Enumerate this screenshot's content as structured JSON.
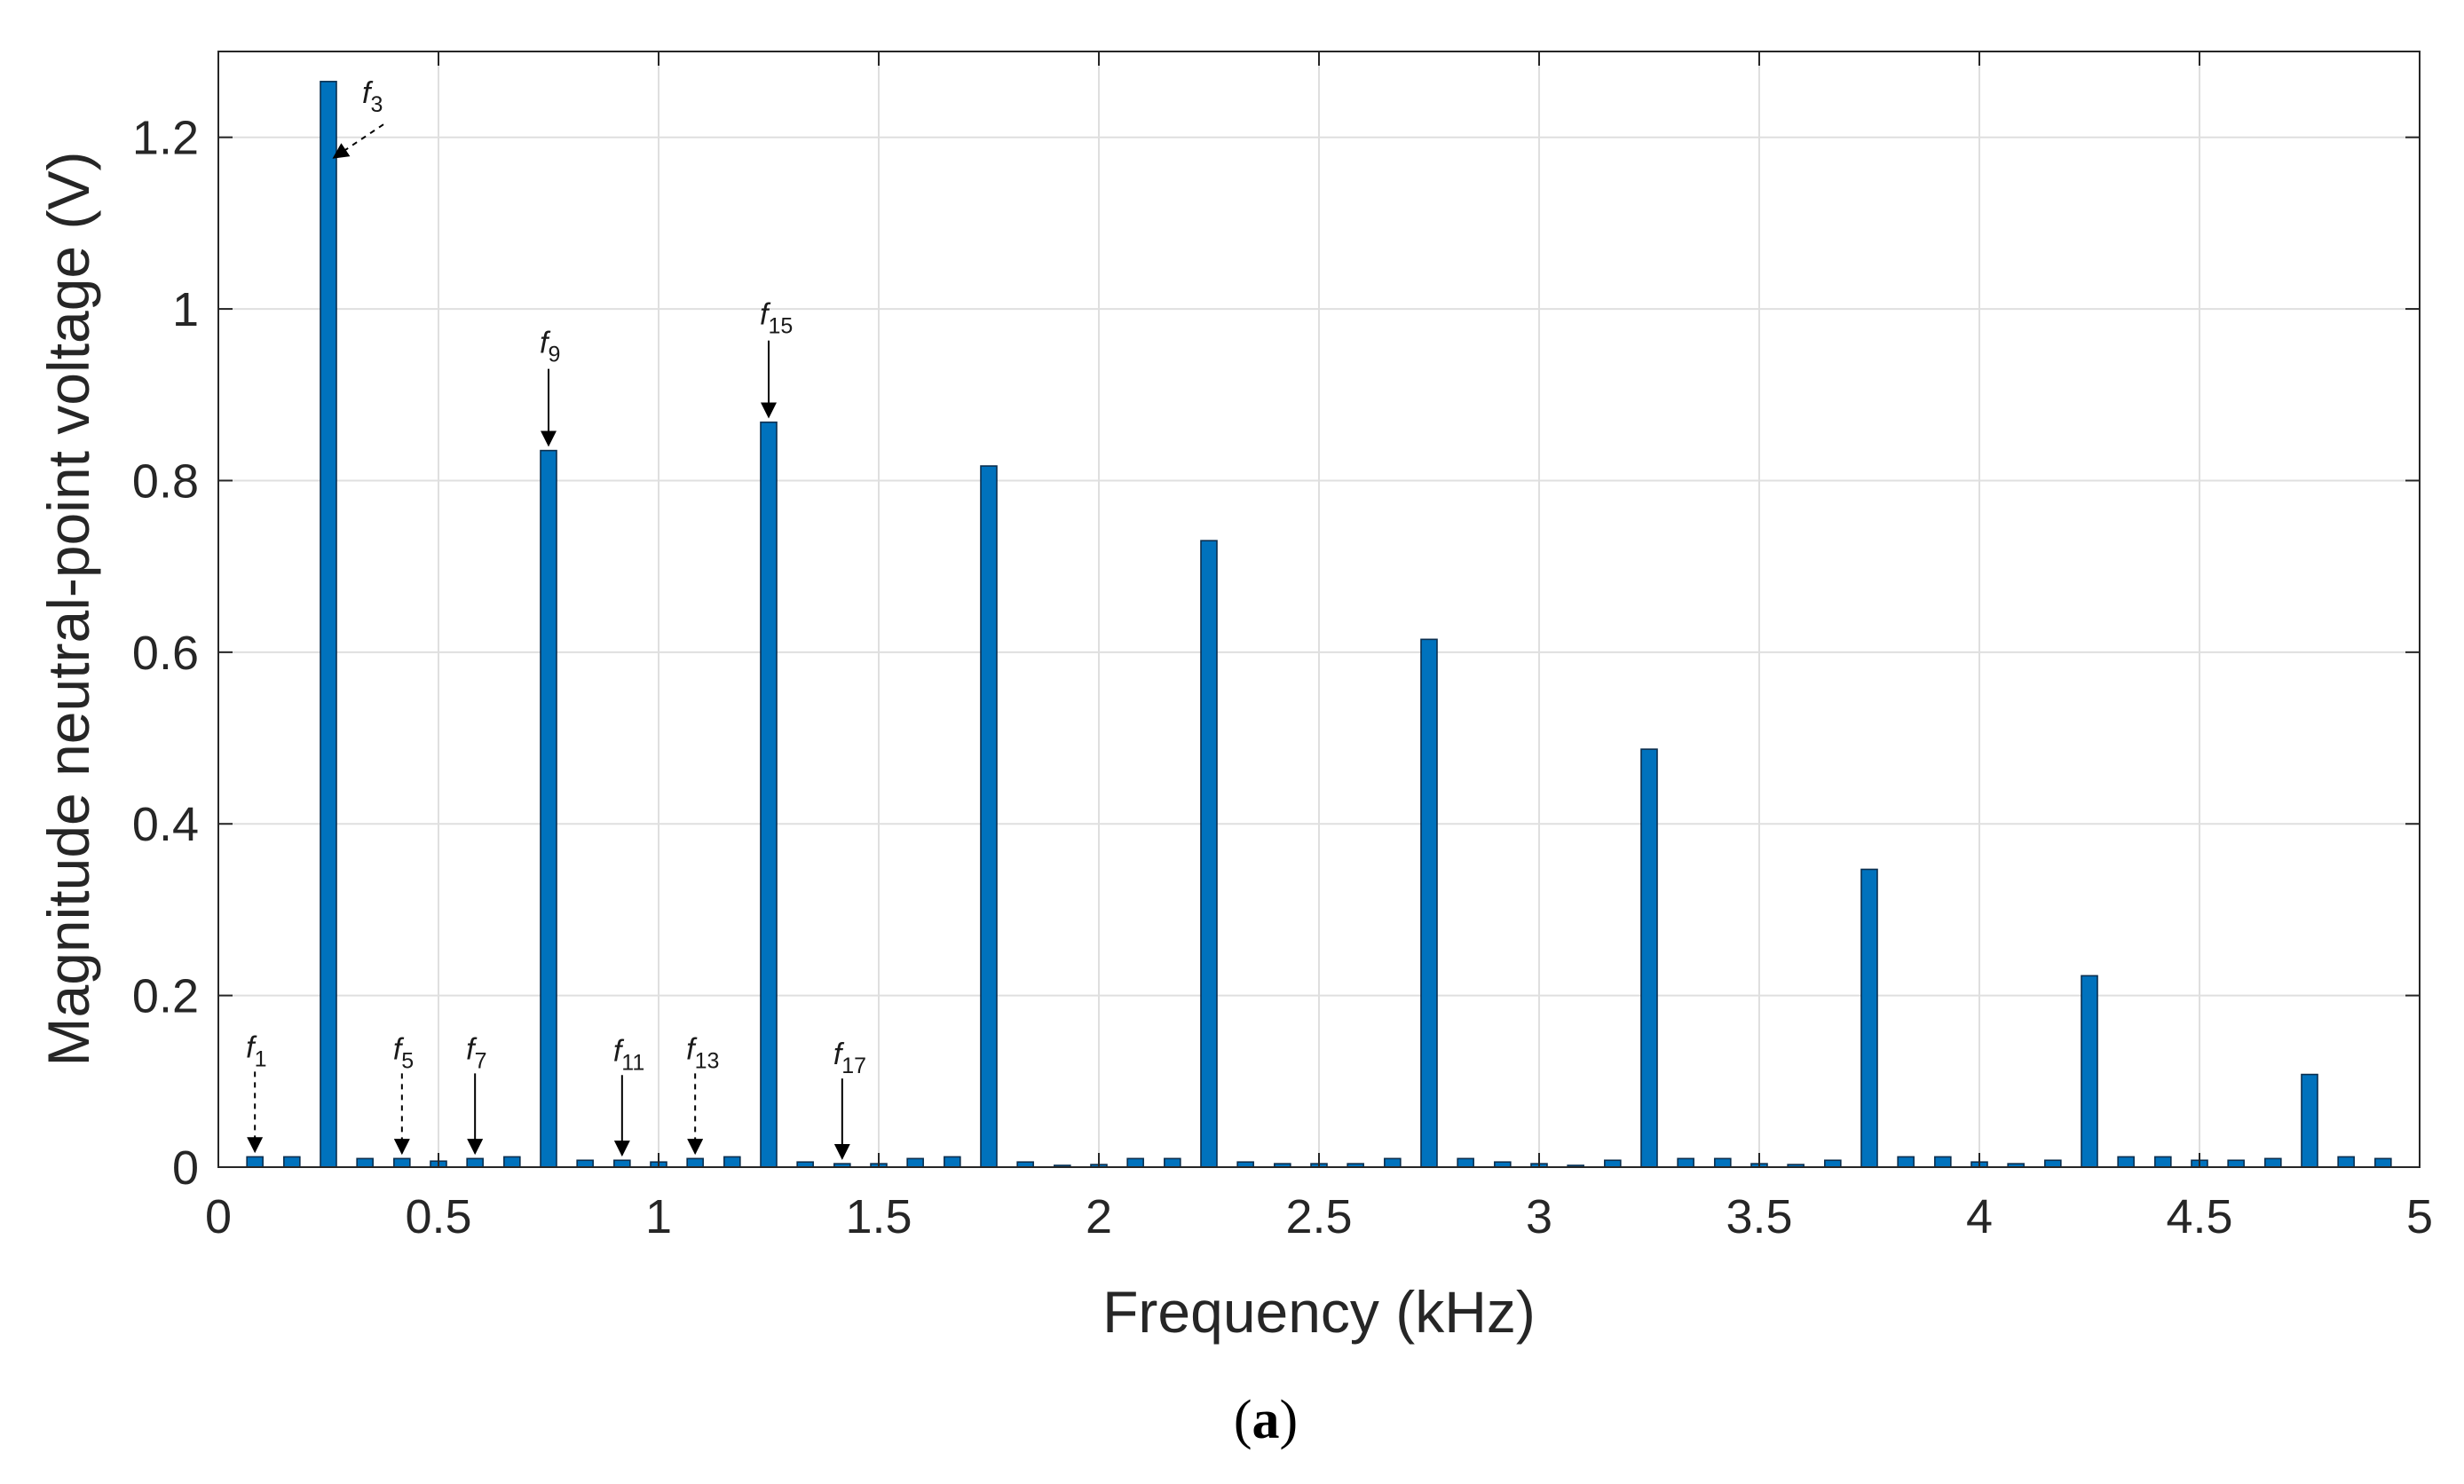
{
  "chart_data": {
    "type": "bar",
    "xlabel": "Frequency  (kHz)",
    "ylabel": "Magnitude neutral-point voltage (V)",
    "xlim": [
      0,
      5
    ],
    "ylim": [
      0,
      1.3
    ],
    "xticks": [
      0,
      0.5,
      1,
      1.5,
      2,
      2.5,
      3,
      3.5,
      4,
      4.5,
      5
    ],
    "yticks": [
      0,
      0.2,
      0.4,
      0.6,
      0.8,
      1,
      1.2
    ],
    "xtick_labels": [
      "0",
      "0.5",
      "1",
      "1.5",
      "2",
      "2.5",
      "3",
      "3.5",
      "4",
      "4.5",
      "5"
    ],
    "ytick_labels": [
      "0",
      "0.2",
      "0.4",
      "0.6",
      "0.8",
      "1",
      "1.2"
    ],
    "grid": true,
    "bar_color": "#0072bd",
    "x": [
      0.083,
      0.167,
      0.25,
      0.333,
      0.417,
      0.5,
      0.583,
      0.667,
      0.75,
      0.833,
      0.917,
      1.0,
      1.083,
      1.167,
      1.25,
      1.333,
      1.417,
      1.5,
      1.583,
      1.667,
      1.75,
      1.833,
      1.917,
      2.0,
      2.083,
      2.167,
      2.25,
      2.333,
      2.417,
      2.5,
      2.583,
      2.667,
      2.75,
      2.833,
      2.917,
      3.0,
      3.083,
      3.167,
      3.25,
      3.333,
      3.417,
      3.5,
      3.583,
      3.667,
      3.75,
      3.833,
      3.917,
      4.0,
      4.083,
      4.167,
      4.25,
      4.333,
      4.417,
      4.5,
      4.583,
      4.667,
      4.75,
      4.833,
      4.917
    ],
    "values": [
      0.012,
      0.012,
      1.265,
      0.01,
      0.01,
      0.007,
      0.01,
      0.012,
      0.835,
      0.008,
      0.008,
      0.006,
      0.01,
      0.012,
      0.868,
      0.006,
      0.004,
      0.004,
      0.01,
      0.012,
      0.817,
      0.006,
      0.002,
      0.003,
      0.01,
      0.01,
      0.73,
      0.006,
      0.004,
      0.004,
      0.004,
      0.01,
      0.615,
      0.01,
      0.006,
      0.004,
      0.002,
      0.008,
      0.487,
      0.01,
      0.01,
      0.004,
      0.003,
      0.008,
      0.347,
      0.012,
      0.012,
      0.006,
      0.004,
      0.008,
      0.223,
      0.012,
      0.012,
      0.008,
      0.008,
      0.01,
      0.108,
      0.012,
      0.01
    ],
    "annotations": [
      {
        "label": "f",
        "sub": "1",
        "x": 0.083,
        "y": 0.012,
        "arrow": "dashed"
      },
      {
        "label": "f",
        "sub": "3",
        "x": 0.25,
        "y": 1.17,
        "arrow": "dashed"
      },
      {
        "label": "f",
        "sub": "5",
        "x": 0.417,
        "y": 0.01,
        "arrow": "dashed"
      },
      {
        "label": "f",
        "sub": "7",
        "x": 0.583,
        "y": 0.01,
        "arrow": "solid"
      },
      {
        "label": "f",
        "sub": "9",
        "x": 0.75,
        "y": 0.835,
        "arrow": "solid"
      },
      {
        "label": "f",
        "sub": "11",
        "x": 0.917,
        "y": 0.008,
        "arrow": "solid"
      },
      {
        "label": "f",
        "sub": "13",
        "x": 1.083,
        "y": 0.01,
        "arrow": "dashed"
      },
      {
        "label": "f",
        "sub": "15",
        "x": 1.25,
        "y": 0.868,
        "arrow": "solid"
      },
      {
        "label": "f",
        "sub": "17",
        "x": 1.417,
        "y": 0.004,
        "arrow": "solid"
      }
    ]
  },
  "caption": {
    "open": "(",
    "letter": "a",
    "close": ")"
  }
}
